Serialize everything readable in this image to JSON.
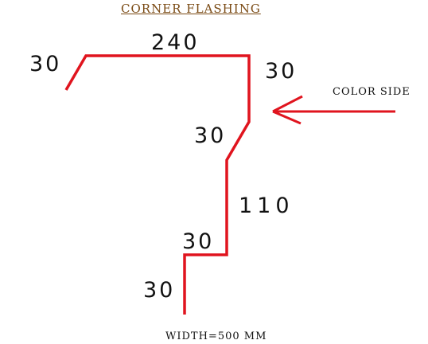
{
  "title": "CORNER FLASHING",
  "color_side_label": "COLOR SIDE",
  "width_note": "WIDTH=500 MM",
  "dimensions": {
    "top_left_lip": "30",
    "top_span": "240",
    "right_drop": "30",
    "angled_segment": "30",
    "vertical_segment": "110",
    "bottom_step": "30",
    "bottom_leg": "30"
  },
  "colors": {
    "profile_line": "#e0141e",
    "arrow": "#e0141e",
    "title": "#7a4a14",
    "text": "#111111"
  }
}
